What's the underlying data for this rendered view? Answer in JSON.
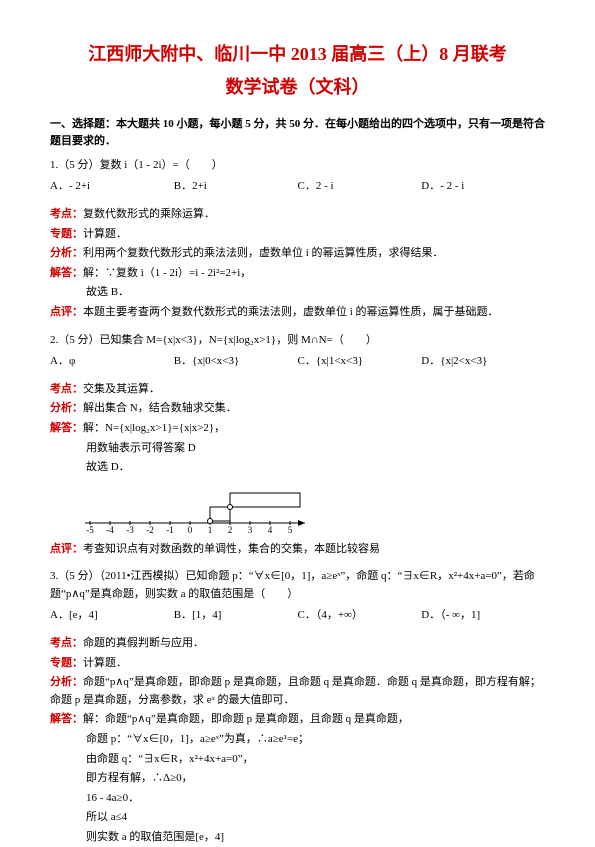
{
  "header": {
    "title": "江西师大附中、临川一中 2013 届高三（上）8 月联考",
    "subtitle": "数学试卷（文科）"
  },
  "section_header": "一、选择题：本大题共 10 小题，每小题 5 分，共 50 分．在每小题给出的四个选项中，只有一项是符合题目要求的．",
  "q1": {
    "stem": "1.（5 分）复数 i（1 - 2i）=（　　）",
    "opts": [
      "A．- 2+i",
      "B．2+i",
      "C．2 - i",
      "D．- 2 - i"
    ],
    "kaodian_label": "考点：",
    "kaodian": "复数代数形式的乘除运算．",
    "zhuanti_label": "专题：",
    "zhuanti": "计算题．",
    "fenxi_label": "分析：",
    "fenxi": "利用两个复数代数形式的乘法法则，虚数单位 i 的幂运算性质，求得结果．",
    "jieda_label": "解答：",
    "jieda_l1": "解：∵复数 i（1 - 2i）=i - 2i²=2+i，",
    "jieda_l2": "故选 B．",
    "dianping_label": "点评：",
    "dianping": "本题主要考查两个复数代数形式的乘法法则，虚数单位 i 的幂运算性质，属于基础题．"
  },
  "q2": {
    "stem": "2.（5 分）已知集合 M={x|x<3}，N={x|log₂x>1}，则 M∩N=（　　）",
    "opts": [
      "A．φ",
      "B．{x|0<x<3}",
      "C．{x|1<x<3}",
      "D．{x|2<x<3}"
    ],
    "kaodian_label": "考点：",
    "kaodian": "交集及其运算．",
    "fenxi_label": "分析：",
    "fenxi": "解出集合 N，结合数轴求交集．",
    "jieda_label": "解答：",
    "jieda_l1": "解：N={x|log₂x>1}={x|x>2}，",
    "jieda_l2": "用数轴表示可得答案 D",
    "jieda_l3": "故选 D．",
    "dianping_label": "点评：",
    "dianping": "考查知识点有对数函数的单调性，集合的交集，本题比较容易"
  },
  "q3": {
    "stem": "3.（5 分）（2011•江西模拟）已知命题 p：“∀x∈[0，1]，a≥eˣ”，命题 q：“∃x∈R，x²+4x+a=0”，若命题“p∧q”是真命题，则实数 a 的取值范围是（　　）",
    "opts": [
      "A．[e，4]",
      "B．[1，4]",
      "C．（4，+∞）",
      "D．（- ∞，1]"
    ],
    "kaodian_label": "考点：",
    "kaodian": "命题的真假判断与应用．",
    "zhuanti_label": "专题：",
    "zhuanti": "计算题．",
    "fenxi_label": "分析：",
    "fenxi": "命题“p∧q”是真命题，即命题 p 是真命题，且命题 q 是真命题．命题 q 是真命题，即方程有解；命题 p 是真命题，分离参数，求 eˣ 的最大值即可．",
    "jieda_label": "解答：",
    "jieda_l1": "解：命题“p∧q”是真命题，即命题 p 是真命题，且命题 q 是真命题，",
    "jieda_l2": "命题 p：“∀x∈[0，1]，a≥eˣ”为真，∴a≥e¹=e；",
    "jieda_l3": "由命题 q：“∃x∈R，x²+4x+a=0”，",
    "jieda_l4": "即方程有解，∴Δ≥0，",
    "jieda_l5": "16 - 4a≥0．",
    "jieda_l6": "所以 a≤4",
    "jieda_l7": "则实数 a 的取值范围是[e，4]"
  },
  "numberline": {
    "ticks": [
      -5,
      -4,
      -3,
      -2,
      -1,
      0,
      1,
      2,
      3,
      4,
      5
    ],
    "open_at": [
      2,
      3
    ],
    "axis_color": "#000000",
    "highlight_color": "#000000"
  }
}
